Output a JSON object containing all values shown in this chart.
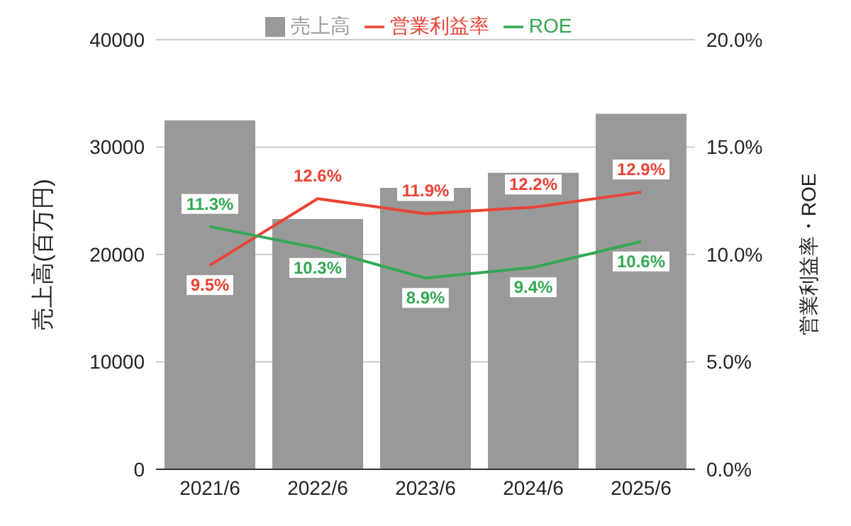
{
  "chart_data": {
    "type": "bar",
    "categories": [
      "2021/6",
      "2022/6",
      "2023/6",
      "2024/6",
      "2025/6"
    ],
    "series": [
      {
        "name": "売上高",
        "color": "#999999",
        "values": [
          32500,
          23300,
          26200,
          27600,
          33100
        ]
      },
      {
        "name": "営業利益率",
        "type": "line",
        "axis": "y2",
        "color": "#ea4335",
        "values": [
          9.5,
          12.6,
          11.9,
          12.2,
          12.9
        ],
        "value_labels": [
          "9.5%",
          "12.6%",
          "11.9%",
          "12.2%",
          "12.9%"
        ]
      },
      {
        "name": "ROE",
        "type": "line",
        "axis": "y2",
        "color": "#34a853",
        "values": [
          11.3,
          10.3,
          8.9,
          9.4,
          10.6
        ],
        "value_labels": [
          "11.3%",
          "10.3%",
          "8.9%",
          "9.4%",
          "10.6%"
        ]
      }
    ],
    "ylabel": "売上高(百万円)",
    "y2label": "営業利益率・ROE",
    "ylim": [
      0,
      40000
    ],
    "yticks": [
      0,
      10000,
      20000,
      30000,
      40000
    ],
    "y2lim": [
      0,
      20
    ],
    "y2ticks": [
      {
        "value": 0,
        "label": "0.0%"
      },
      {
        "value": 5,
        "label": "5.0%"
      },
      {
        "value": 10,
        "label": "10.0%"
      },
      {
        "value": 15,
        "label": "15.0%"
      },
      {
        "value": 20,
        "label": "20.0%"
      }
    ],
    "grid": "y",
    "legend": "top",
    "marker": "none"
  }
}
